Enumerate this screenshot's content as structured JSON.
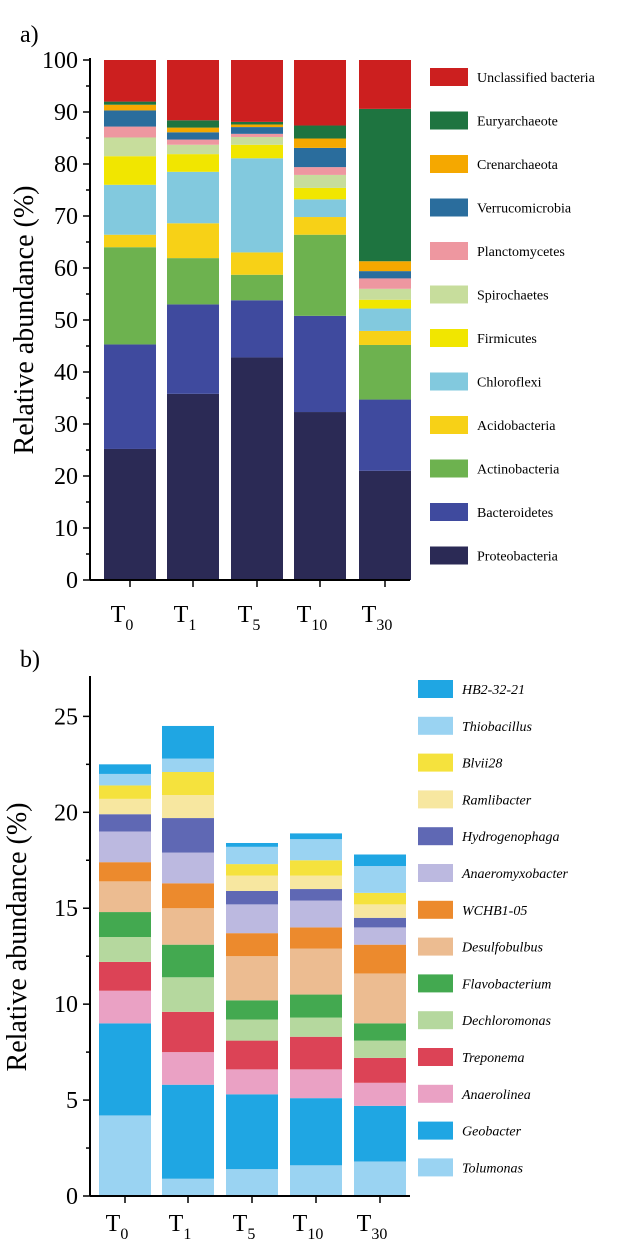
{
  "chart_data": [
    {
      "panel": "a)",
      "type": "bar",
      "stacked": true,
      "ylabel": "Relative abundance (%)",
      "ylim": [
        0,
        100
      ],
      "yticks": [
        "0",
        "10",
        "20",
        "30",
        "40",
        "50",
        "60",
        "70",
        "80",
        "90",
        "100"
      ],
      "categories": [
        {
          "base": "T",
          "sub": "0"
        },
        {
          "base": "T",
          "sub": "1"
        },
        {
          "base": "T",
          "sub": "5"
        },
        {
          "base": "T",
          "sub": "10"
        },
        {
          "base": "T",
          "sub": "30"
        }
      ],
      "series": [
        {
          "name": "Proteobacteria",
          "color": "#2b2a55",
          "values": [
            25.2,
            35.8,
            42.8,
            32.3,
            21.0
          ]
        },
        {
          "name": "Bacteroidetes",
          "color": "#3f4a9e",
          "values": [
            20.1,
            17.2,
            11.0,
            18.5,
            13.7
          ]
        },
        {
          "name": "Actinobacteria",
          "color": "#6db24f",
          "values": [
            18.7,
            8.9,
            4.9,
            15.6,
            10.5
          ]
        },
        {
          "name": "Acidobacteria",
          "color": "#f7d117",
          "values": [
            2.4,
            6.7,
            4.3,
            3.4,
            2.7
          ]
        },
        {
          "name": "Chloroflexi",
          "color": "#82c9de",
          "values": [
            9.6,
            9.9,
            18.1,
            3.4,
            4.3
          ]
        },
        {
          "name": "Firmicutes",
          "color": "#f1e600",
          "values": [
            5.5,
            3.4,
            2.6,
            2.2,
            1.7
          ]
        },
        {
          "name": "Spirochaetes",
          "color": "#c7dd9c",
          "values": [
            3.6,
            1.8,
            1.5,
            2.5,
            2.1
          ]
        },
        {
          "name": "Planctomycetes",
          "color": "#ee97a0",
          "values": [
            2.1,
            1.0,
            0.6,
            1.5,
            2.0
          ]
        },
        {
          "name": "Verrucomicrobia",
          "color": "#2a6d9d",
          "values": [
            3.1,
            1.4,
            1.3,
            3.7,
            1.4
          ]
        },
        {
          "name": "Crenarchaeota",
          "color": "#f5a800",
          "values": [
            1.1,
            0.9,
            0.5,
            1.8,
            1.9
          ]
        },
        {
          "name": "Euryarchaeote",
          "color": "#1e7440",
          "values": [
            0.6,
            1.4,
            0.5,
            2.5,
            29.3
          ]
        },
        {
          "name": "Unclassified bacteria",
          "color": "#cc1f1f",
          "values": [
            8.0,
            11.6,
            11.9,
            12.6,
            9.4
          ]
        }
      ]
    },
    {
      "panel": "b)",
      "type": "bar",
      "stacked": true,
      "ylabel": "Relative abundance (%)",
      "ylim": [
        0,
        27
      ],
      "yticks": [
        "0",
        "5",
        "10",
        "15",
        "20",
        "25"
      ],
      "ytick_values": [
        0,
        5,
        10,
        15,
        20,
        25
      ],
      "categories": [
        {
          "base": "T",
          "sub": "0"
        },
        {
          "base": "T",
          "sub": "1"
        },
        {
          "base": "T",
          "sub": "5"
        },
        {
          "base": "T",
          "sub": "10"
        },
        {
          "base": "T",
          "sub": "30"
        }
      ],
      "series": [
        {
          "name": "Tolumonas",
          "color": "#9ad3f2",
          "values": [
            4.2,
            0.9,
            1.4,
            1.6,
            1.8
          ]
        },
        {
          "name": "Geobacter",
          "color": "#1fa6e3",
          "values": [
            4.8,
            4.9,
            3.9,
            3.5,
            2.9
          ]
        },
        {
          "name": "Anaerolinea",
          "color": "#eaa1c4",
          "values": [
            1.7,
            1.7,
            1.3,
            1.5,
            1.2
          ]
        },
        {
          "name": "Treponema",
          "color": "#dc4356",
          "values": [
            1.5,
            2.1,
            1.5,
            1.7,
            1.3
          ]
        },
        {
          "name": "Dechloromonas",
          "color": "#b5d89e",
          "values": [
            1.3,
            1.8,
            1.1,
            1.0,
            0.9
          ]
        },
        {
          "name": "Flavobacterium",
          "color": "#43a950",
          "values": [
            1.3,
            1.7,
            1.0,
            1.2,
            0.9
          ]
        },
        {
          "name": "Desulfobulbus",
          "color": "#ecbc91",
          "values": [
            1.6,
            1.9,
            2.3,
            2.4,
            2.6
          ]
        },
        {
          "name": "WCHB1-05",
          "color": "#ec8a2d",
          "values": [
            1.0,
            1.3,
            1.2,
            1.1,
            1.5
          ]
        },
        {
          "name": "Anaeromyxobacter",
          "color": "#bcb9e0",
          "values": [
            1.6,
            1.6,
            1.5,
            1.4,
            0.9
          ]
        },
        {
          "name": "Hydrogenophaga",
          "color": "#5f68b4",
          "values": [
            0.9,
            1.8,
            0.7,
            0.6,
            0.5
          ]
        },
        {
          "name": "Ramlibacter",
          "color": "#f7e7a0",
          "values": [
            0.8,
            1.2,
            0.8,
            0.7,
            0.7
          ]
        },
        {
          "name": "Blvii28",
          "color": "#f5e23d",
          "values": [
            0.7,
            1.2,
            0.6,
            0.8,
            0.6
          ]
        },
        {
          "name": "Thiobacillus",
          "color": "#9ad3f2",
          "values": [
            0.6,
            0.7,
            0.9,
            1.1,
            1.4
          ]
        },
        {
          "name": "HB2-32-21",
          "color": "#1fa6e3",
          "values": [
            0.5,
            1.7,
            0.2,
            0.3,
            0.6
          ]
        }
      ]
    }
  ]
}
